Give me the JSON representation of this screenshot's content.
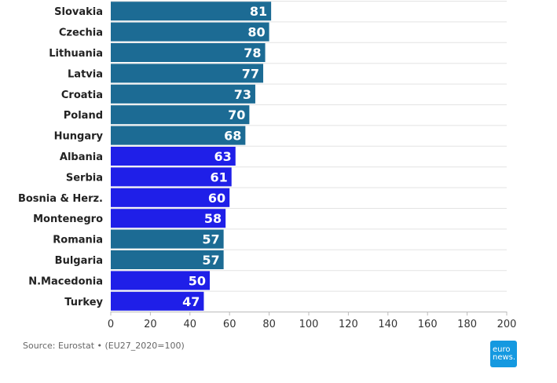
{
  "chart_data": {
    "type": "bar",
    "orientation": "horizontal",
    "categories": [
      "Slovakia",
      "Czechia",
      "Lithuania",
      "Latvia",
      "Croatia",
      "Poland",
      "Hungary",
      "Albania",
      "Serbia",
      "Bosnia & Herz.",
      "Montenegro",
      "Romania",
      "Bulgaria",
      "N.Macedonia",
      "Turkey"
    ],
    "values": [
      81,
      80,
      78,
      77,
      73,
      70,
      68,
      63,
      61,
      60,
      58,
      57,
      57,
      50,
      47
    ],
    "groups": [
      "eu",
      "eu",
      "eu",
      "eu",
      "eu",
      "eu",
      "eu",
      "non_eu",
      "non_eu",
      "non_eu",
      "non_eu",
      "eu",
      "eu",
      "non_eu",
      "non_eu"
    ],
    "xlim": [
      0,
      200
    ],
    "xticks": [
      0,
      20,
      40,
      60,
      80,
      100,
      120,
      140,
      160,
      180,
      200
    ],
    "grid": true,
    "colors": {
      "eu": "#1c6b94",
      "non_eu": "#1f1fe8"
    }
  },
  "source_text": "Source: Eurostat • (EU27_2020=100)",
  "logo": {
    "line1": "euro",
    "line2": "news.",
    "color": "#1599e0"
  }
}
